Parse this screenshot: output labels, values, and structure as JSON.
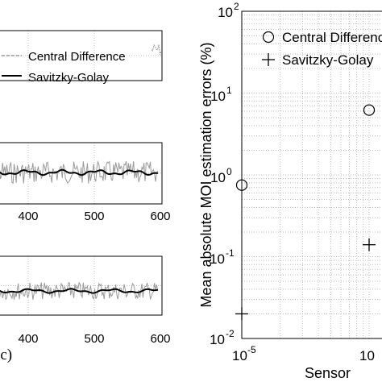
{
  "chart_data": [
    {
      "type": "line",
      "panel": "top-left",
      "legend": [
        "Central Difference",
        "Savitzky-Golay"
      ],
      "legend_placement": "top-right",
      "grid": true,
      "series": [
        {
          "name": "Central Difference",
          "style": "dashed",
          "color": "#9a9a9a"
        },
        {
          "name": "Savitzky-Golay",
          "style": "solid",
          "color": "#000000"
        }
      ]
    },
    {
      "type": "line",
      "panel": "middle-left",
      "grid": true,
      "xlim": [
        360,
        600
      ],
      "x_ticks": [
        "400",
        "500",
        "600"
      ],
      "series": [
        {
          "name": "Central Difference",
          "style": "dashed",
          "color": "#9a9a9a"
        },
        {
          "name": "Savitzky-Golay",
          "style": "solid",
          "color": "#000000"
        }
      ]
    },
    {
      "type": "line",
      "panel": "bottom-left",
      "label": "(c)",
      "grid": true,
      "xlim": [
        360,
        600
      ],
      "x_ticks": [
        "400",
        "500",
        "600"
      ],
      "series": [
        {
          "name": "Central Difference",
          "style": "dashed",
          "color": "#9a9a9a"
        },
        {
          "name": "Savitzky-Golay",
          "style": "solid",
          "color": "#000000"
        }
      ]
    },
    {
      "type": "scatter",
      "panel": "right",
      "ylabel": "Mean absolute MOI estimation errors (%)",
      "xlabel": "Sensor",
      "yscale": "log",
      "xscale": "log",
      "ylim": [
        0.01,
        100
      ],
      "y_ticks": [
        {
          "base": "10",
          "exp": "2"
        },
        {
          "base": "10",
          "exp": "1"
        },
        {
          "base": "10",
          "exp": "0"
        },
        {
          "base": "10",
          "exp": "-1"
        },
        {
          "base": "10",
          "exp": "-2"
        }
      ],
      "x_ticks": [
        {
          "base": "10",
          "exp": "-5"
        },
        {
          "base": "10",
          "exp": ""
        }
      ],
      "legend": [
        "Central Difference",
        "Savitzky-Golay"
      ],
      "legend_placement": "top-right",
      "grid": true,
      "series": [
        {
          "name": "Central Difference",
          "marker": "circle",
          "points": [
            {
              "x": 1e-05,
              "y": 0.75
            },
            {
              "x": 0.0001,
              "y": 6.2
            }
          ]
        },
        {
          "name": "Savitzky-Golay",
          "marker": "plus",
          "points": [
            {
              "x": 1e-05,
              "y": 0.02
            },
            {
              "x": 0.0001,
              "y": 0.14
            }
          ]
        }
      ]
    }
  ]
}
